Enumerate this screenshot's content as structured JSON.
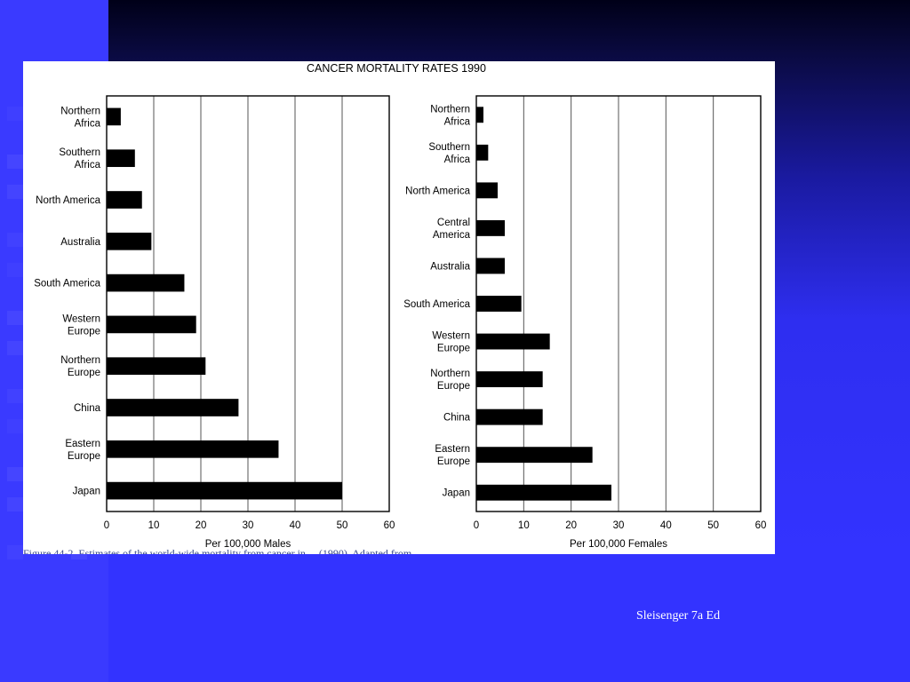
{
  "slide": {
    "credit": "Sleisenger 7a Ed",
    "colors": {
      "background": "#3333ff",
      "top_gradient": "#000018",
      "panel": "#ffffff",
      "bars": "#000000"
    }
  },
  "figure": {
    "caption_partial": "Figure 44-2. Estimates of the world-wide mortality from cancer in ... (1990). Adapted from ..."
  },
  "chart_data": [
    {
      "type": "bar",
      "orientation": "horizontal",
      "title": "CANCER MORTALITY RATES 1990",
      "xlabel": "Per 100,000 Males",
      "ylabel": "",
      "xlim": [
        0,
        60
      ],
      "xticks": [
        0,
        10,
        20,
        30,
        40,
        50,
        60
      ],
      "grid": true,
      "categories": [
        "Northern|Africa",
        "Southern|Africa",
        "North America",
        "Australia",
        "South America",
        "Western|Europe",
        "Northern|Europe",
        "China",
        "Eastern|Europe",
        "Japan"
      ],
      "values": [
        3,
        6,
        7.5,
        9.5,
        16.5,
        19,
        21,
        28,
        36.5,
        50
      ]
    },
    {
      "type": "bar",
      "orientation": "horizontal",
      "title": "",
      "xlabel": "Per 100,000 Females",
      "ylabel": "",
      "xlim": [
        0,
        60
      ],
      "xticks": [
        0,
        10,
        20,
        30,
        40,
        50,
        60
      ],
      "grid": true,
      "categories": [
        "Northern|Africa",
        "Southern|Africa",
        "North America",
        "Central|America",
        "Australia",
        "South America",
        "Western|Europe",
        "Northern|Europe",
        "China",
        "Eastern|Europe",
        "Japan"
      ],
      "values": [
        1.5,
        2.5,
        4.5,
        6,
        6,
        9.5,
        15.5,
        14,
        14,
        24.5,
        28.5
      ]
    }
  ]
}
